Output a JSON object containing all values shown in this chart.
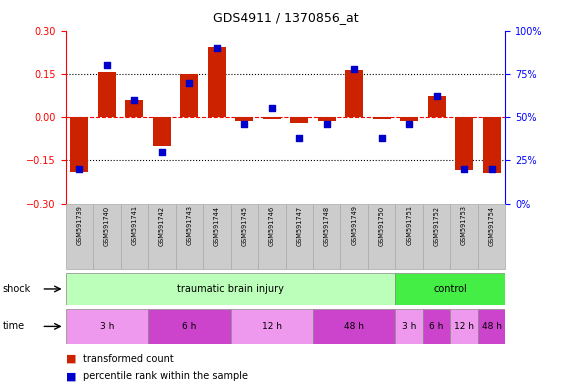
{
  "title": "GDS4911 / 1370856_at",
  "samples": [
    "GSM591739",
    "GSM591740",
    "GSM591741",
    "GSM591742",
    "GSM591743",
    "GSM591744",
    "GSM591745",
    "GSM591746",
    "GSM591747",
    "GSM591748",
    "GSM591749",
    "GSM591750",
    "GSM591751",
    "GSM591752",
    "GSM591753",
    "GSM591754"
  ],
  "bar_values": [
    -0.19,
    0.155,
    0.06,
    -0.1,
    0.15,
    0.245,
    -0.015,
    -0.005,
    -0.02,
    -0.015,
    0.165,
    -0.005,
    -0.015,
    0.075,
    -0.185,
    -0.195
  ],
  "dot_values_pct": [
    20,
    80,
    60,
    30,
    70,
    90,
    46,
    55,
    38,
    46,
    78,
    38,
    46,
    62,
    20,
    20
  ],
  "ylim_left": [
    -0.3,
    0.3
  ],
  "ylim_right": [
    0,
    100
  ],
  "bar_color": "#cc2200",
  "dot_color": "#0000cc",
  "bg_color": "#ffffff",
  "shock_row": [
    {
      "label": "traumatic brain injury",
      "start": 0,
      "end": 12,
      "color": "#bbffbb"
    },
    {
      "label": "control",
      "start": 12,
      "end": 16,
      "color": "#44ee44"
    }
  ],
  "time_row": [
    {
      "label": "3 h",
      "start": 0,
      "end": 3,
      "color": "#ee99ee"
    },
    {
      "label": "6 h",
      "start": 3,
      "end": 6,
      "color": "#cc44cc"
    },
    {
      "label": "12 h",
      "start": 6,
      "end": 9,
      "color": "#ee99ee"
    },
    {
      "label": "48 h",
      "start": 9,
      "end": 12,
      "color": "#cc44cc"
    },
    {
      "label": "3 h",
      "start": 12,
      "end": 13,
      "color": "#ee99ee"
    },
    {
      "label": "6 h",
      "start": 13,
      "end": 14,
      "color": "#cc44cc"
    },
    {
      "label": "12 h",
      "start": 14,
      "end": 15,
      "color": "#ee99ee"
    },
    {
      "label": "48 h",
      "start": 15,
      "end": 16,
      "color": "#cc44cc"
    }
  ],
  "legend_bar_label": "transformed count",
  "legend_dot_label": "percentile rank within the sample",
  "shock_label": "shock",
  "time_label": "time",
  "right_ytick_labels": [
    "0%",
    "25%",
    "50%",
    "75%",
    "100%"
  ]
}
